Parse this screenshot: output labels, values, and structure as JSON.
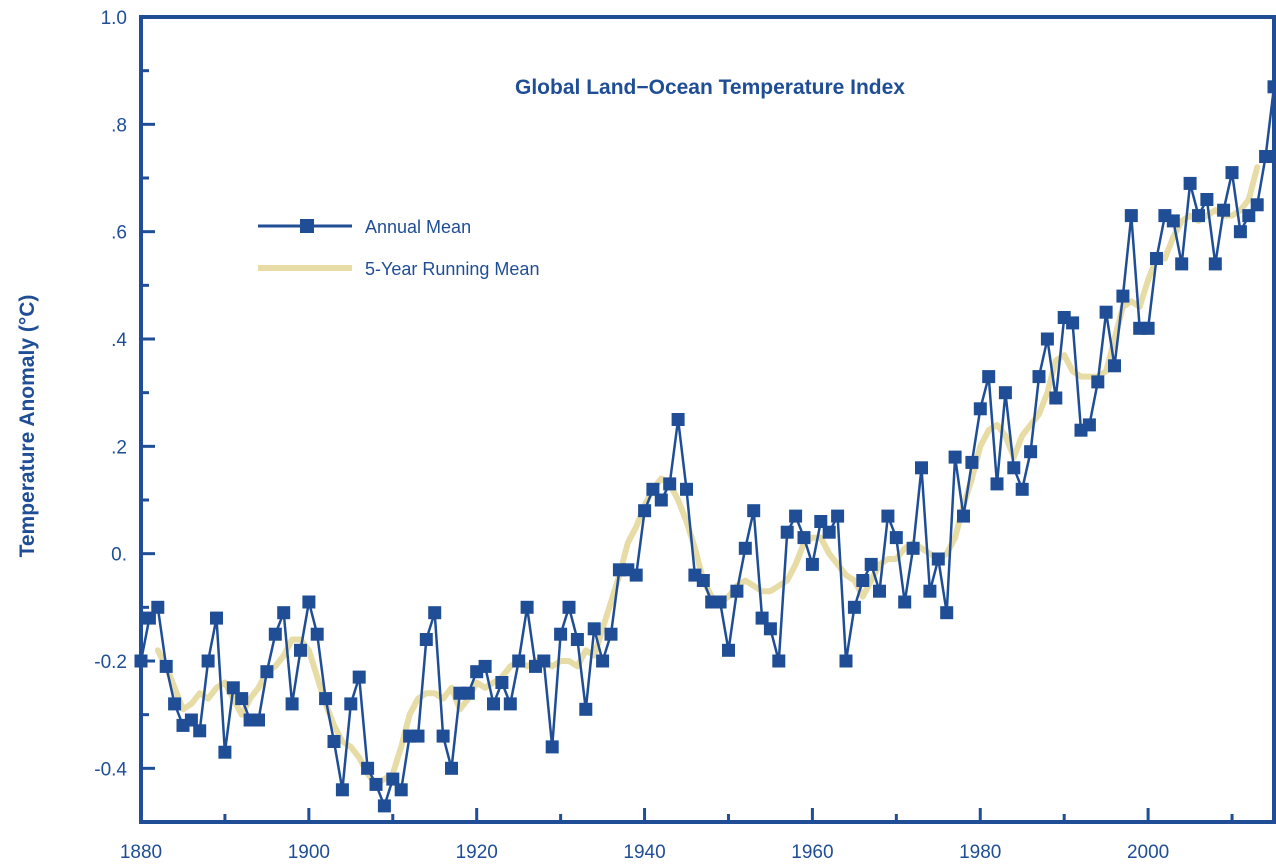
{
  "chart_data": {
    "type": "line",
    "title": "Global Land−Ocean Temperature Index",
    "xlabel": "",
    "ylabel": "Temperature Anomaly (°C)",
    "xlim": [
      1880,
      2015
    ],
    "ylim": [
      -0.5,
      1.0
    ],
    "x_ticks": [
      1880,
      1900,
      1920,
      1940,
      1960,
      1980,
      2000
    ],
    "x_tick_labels": [
      "1880",
      "1900",
      "1920",
      "1940",
      "1960",
      "1980",
      "2000"
    ],
    "y_ticks": [
      -0.4,
      -0.2,
      0.0,
      0.2,
      0.4,
      0.6,
      0.8,
      1.0
    ],
    "y_tick_labels": [
      "-0.4",
      "-0.2",
      "0.",
      ".2",
      ".4",
      ".6",
      ".8",
      "1.0"
    ],
    "grid": false,
    "legend_position": "upper-left",
    "colors": {
      "annual": "#1f4e96",
      "running": "#e8dca6",
      "text": "#1f4e96",
      "frame": "#1f4e96"
    },
    "series": [
      {
        "name": "Annual Mean",
        "marker": "square",
        "x": [
          1880,
          1881,
          1882,
          1883,
          1884,
          1885,
          1886,
          1887,
          1888,
          1889,
          1890,
          1891,
          1892,
          1893,
          1894,
          1895,
          1896,
          1897,
          1898,
          1899,
          1900,
          1901,
          1902,
          1903,
          1904,
          1905,
          1906,
          1907,
          1908,
          1909,
          1910,
          1911,
          1912,
          1913,
          1914,
          1915,
          1916,
          1917,
          1918,
          1919,
          1920,
          1921,
          1922,
          1923,
          1924,
          1925,
          1926,
          1927,
          1928,
          1929,
          1930,
          1931,
          1932,
          1933,
          1934,
          1935,
          1936,
          1937,
          1938,
          1939,
          1940,
          1941,
          1942,
          1943,
          1944,
          1945,
          1946,
          1947,
          1948,
          1949,
          1950,
          1951,
          1952,
          1953,
          1954,
          1955,
          1956,
          1957,
          1958,
          1959,
          1960,
          1961,
          1962,
          1963,
          1964,
          1965,
          1966,
          1967,
          1968,
          1969,
          1970,
          1971,
          1972,
          1973,
          1974,
          1975,
          1976,
          1977,
          1978,
          1979,
          1980,
          1981,
          1982,
          1983,
          1984,
          1985,
          1986,
          1987,
          1988,
          1989,
          1990,
          1991,
          1992,
          1993,
          1994,
          1995,
          1996,
          1997,
          1998,
          1999,
          2000,
          2001,
          2002,
          2003,
          2004,
          2005,
          2006,
          2007,
          2008,
          2009,
          2010,
          2011,
          2012,
          2013,
          2014,
          2015
        ],
        "values": [
          -0.2,
          -0.12,
          -0.1,
          -0.21,
          -0.28,
          -0.32,
          -0.31,
          -0.33,
          -0.2,
          -0.12,
          -0.37,
          -0.25,
          -0.27,
          -0.31,
          -0.31,
          -0.22,
          -0.15,
          -0.11,
          -0.28,
          -0.18,
          -0.09,
          -0.15,
          -0.27,
          -0.35,
          -0.44,
          -0.28,
          -0.23,
          -0.4,
          -0.43,
          -0.47,
          -0.42,
          -0.44,
          -0.34,
          -0.34,
          -0.16,
          -0.11,
          -0.34,
          -0.4,
          -0.26,
          -0.26,
          -0.22,
          -0.21,
          -0.28,
          -0.24,
          -0.28,
          -0.2,
          -0.1,
          -0.21,
          -0.2,
          -0.36,
          -0.15,
          -0.1,
          -0.16,
          -0.29,
          -0.14,
          -0.2,
          -0.15,
          -0.03,
          -0.03,
          -0.04,
          0.08,
          0.12,
          0.1,
          0.13,
          0.25,
          0.12,
          -0.04,
          -0.05,
          -0.09,
          -0.09,
          -0.18,
          -0.07,
          0.01,
          0.08,
          -0.12,
          -0.14,
          -0.2,
          0.04,
          0.07,
          0.03,
          -0.02,
          0.06,
          0.04,
          0.07,
          -0.2,
          -0.1,
          -0.05,
          -0.02,
          -0.07,
          0.07,
          0.03,
          -0.09,
          0.01,
          0.16,
          -0.07,
          -0.01,
          -0.11,
          0.18,
          0.07,
          0.17,
          0.27,
          0.33,
          0.13,
          0.3,
          0.16,
          0.12,
          0.19,
          0.33,
          0.4,
          0.29,
          0.44,
          0.43,
          0.23,
          0.24,
          0.32,
          0.45,
          0.35,
          0.48,
          0.63,
          0.42,
          0.42,
          0.55,
          0.63,
          0.62,
          0.54,
          0.69,
          0.63,
          0.66,
          0.54,
          0.64,
          0.71,
          0.6,
          0.63,
          0.65,
          0.74,
          0.87
        ]
      },
      {
        "name": "5-Year Running Mean",
        "x": [
          1882,
          1883,
          1884,
          1885,
          1886,
          1887,
          1888,
          1889,
          1890,
          1891,
          1892,
          1893,
          1894,
          1895,
          1896,
          1897,
          1898,
          1899,
          1900,
          1901,
          1902,
          1903,
          1904,
          1905,
          1906,
          1907,
          1908,
          1909,
          1910,
          1911,
          1912,
          1913,
          1914,
          1915,
          1916,
          1917,
          1918,
          1919,
          1920,
          1921,
          1922,
          1923,
          1924,
          1925,
          1926,
          1927,
          1928,
          1929,
          1930,
          1931,
          1932,
          1933,
          1934,
          1935,
          1936,
          1937,
          1938,
          1939,
          1940,
          1941,
          1942,
          1943,
          1944,
          1945,
          1946,
          1947,
          1948,
          1949,
          1950,
          1951,
          1952,
          1953,
          1954,
          1955,
          1956,
          1957,
          1958,
          1959,
          1960,
          1961,
          1962,
          1963,
          1964,
          1965,
          1966,
          1967,
          1968,
          1969,
          1970,
          1971,
          1972,
          1973,
          1974,
          1975,
          1976,
          1977,
          1978,
          1979,
          1980,
          1981,
          1982,
          1983,
          1984,
          1985,
          1986,
          1987,
          1988,
          1989,
          1990,
          1991,
          1992,
          1993,
          1994,
          1995,
          1996,
          1997,
          1998,
          1999,
          2000,
          2001,
          2002,
          2003,
          2004,
          2005,
          2006,
          2007,
          2008,
          2009,
          2010,
          2011,
          2012,
          2013
        ],
        "values": [
          -0.18,
          -0.21,
          -0.25,
          -0.29,
          -0.28,
          -0.26,
          -0.27,
          -0.25,
          -0.24,
          -0.27,
          -0.3,
          -0.27,
          -0.25,
          -0.22,
          -0.21,
          -0.19,
          -0.16,
          -0.16,
          -0.18,
          -0.23,
          -0.28,
          -0.32,
          -0.35,
          -0.36,
          -0.38,
          -0.41,
          -0.43,
          -0.42,
          -0.41,
          -0.36,
          -0.3,
          -0.27,
          -0.26,
          -0.26,
          -0.27,
          -0.25,
          -0.29,
          -0.27,
          -0.24,
          -0.25,
          -0.24,
          -0.23,
          -0.21,
          -0.2,
          -0.21,
          -0.2,
          -0.2,
          -0.21,
          -0.2,
          -0.2,
          -0.21,
          -0.18,
          -0.19,
          -0.14,
          -0.09,
          -0.04,
          0.02,
          0.05,
          0.09,
          0.12,
          0.14,
          0.13,
          0.1,
          0.06,
          0.01,
          -0.05,
          -0.08,
          -0.09,
          -0.08,
          -0.06,
          -0.05,
          -0.06,
          -0.07,
          -0.07,
          -0.06,
          -0.05,
          -0.02,
          0.02,
          0.03,
          0.03,
          0.0,
          -0.02,
          -0.04,
          -0.05,
          -0.08,
          -0.05,
          -0.02,
          -0.01,
          -0.01,
          0.01,
          0.02,
          0.01,
          0.0,
          -0.01,
          0.0,
          0.03,
          0.09,
          0.14,
          0.2,
          0.23,
          0.24,
          0.22,
          0.18,
          0.22,
          0.24,
          0.26,
          0.3,
          0.36,
          0.37,
          0.34,
          0.33,
          0.33,
          0.33,
          0.34,
          0.4,
          0.46,
          0.47,
          0.46,
          0.51,
          0.55,
          0.55,
          0.59,
          0.62,
          0.63,
          0.62,
          0.63,
          0.64,
          0.63,
          0.63,
          0.64,
          0.66,
          0.72
        ]
      }
    ]
  }
}
